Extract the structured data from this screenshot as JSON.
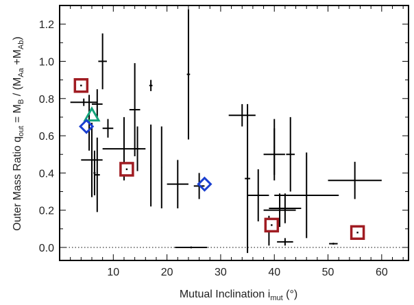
{
  "chart_data": {
    "type": "scatter",
    "xlim": [
      0,
      65
    ],
    "ylim": [
      -0.07,
      1.3
    ],
    "x_ticks": [
      "10",
      "20",
      "30",
      "40",
      "50",
      "60"
    ],
    "y_ticks": [
      "0.0",
      "0.2",
      "0.4",
      "0.6",
      "0.8",
      "1.0",
      "1.2"
    ],
    "xlabel": {
      "main": "Mutual Inclination i",
      "sub": "mut",
      "unit": " (°)"
    },
    "ylabel": {
      "part1": "Outer Mass Ratio q",
      "sub1": "out",
      "part2": " = M",
      "sub2": "B",
      "part3": " / (M",
      "sub3": "Aa",
      "part4": " +M",
      "sub4": "Ab",
      "part5": ")"
    },
    "reference_line": {
      "y": 0,
      "style": "dotted"
    },
    "grid": false,
    "colors": {
      "square": "#a01c22",
      "triangle": "#13a37a",
      "diamond": "#1a3fd0",
      "errorbar": "#000000"
    },
    "series": [
      {
        "marker": "errorbar",
        "points": [
          {
            "x": 4.5,
            "y": 0.78,
            "xerr": 2.5,
            "yerr": 0.02
          },
          {
            "x": 5.5,
            "y": 0.67,
            "xerr": 0.2,
            "yerr": 0.15
          },
          {
            "x": 6,
            "y": 0.47,
            "xerr": 2,
            "yerr": 0.2
          },
          {
            "x": 6.5,
            "y": 0.4,
            "xerr": 0.2,
            "yerr": 0.12
          },
          {
            "x": 7,
            "y": 0.39,
            "xerr": 0.5,
            "yerr": 0.2
          },
          {
            "x": 7,
            "y": 0.77,
            "xerr": 1,
            "yerr": 0.08
          },
          {
            "x": 8,
            "y": 1.0,
            "xerr": 0.8,
            "yerr": 0.15
          },
          {
            "x": 9,
            "y": 0.64,
            "xerr": 1,
            "yerr": 0.05
          },
          {
            "x": 12,
            "y": 0.53,
            "xerr": 4,
            "yerr": 0.17
          },
          {
            "x": 14,
            "y": 0.74,
            "xerr": 1,
            "yerr": 0.25
          },
          {
            "x": 14.5,
            "y": 0.53,
            "xerr": 0.5,
            "yerr": 0.12
          },
          {
            "x": 17,
            "y": 0.87,
            "xerr": 0.3,
            "yerr": 0.03
          },
          {
            "x": 17,
            "y": 0.44,
            "xerr": 0.1,
            "yerr": 0.22
          },
          {
            "x": 19,
            "y": 0.43,
            "xerr": 0.1,
            "yerr": 0.22
          },
          {
            "x": 22,
            "y": 0.34,
            "xerr": 2,
            "yerr": 0.13
          },
          {
            "x": 24,
            "y": 0.93,
            "xerr": 0.3,
            "yerr": 0.35
          },
          {
            "x": 24.5,
            "y": 0.0,
            "xerr": 3,
            "yerr": 0.005
          },
          {
            "x": 26,
            "y": 0.33,
            "xerr": 1,
            "yerr": 0.07
          },
          {
            "x": 34,
            "y": 0.71,
            "xerr": 2.5,
            "yerr": 0.06
          },
          {
            "x": 35,
            "y": 0.37,
            "xerr": 0.5,
            "yerr": 0.4
          },
          {
            "x": 37,
            "y": 0.28,
            "xerr": 2,
            "yerr": 0.14
          },
          {
            "x": 39,
            "y": 0.09,
            "xerr": 0.3,
            "yerr": 0.08
          },
          {
            "x": 40,
            "y": 0.5,
            "xerr": 2,
            "yerr": 0.14
          },
          {
            "x": 40,
            "y": 0.54,
            "xerr": 0.1,
            "yerr": 0.15
          },
          {
            "x": 41,
            "y": 0.2,
            "xerr": 3,
            "yerr": 0.09
          },
          {
            "x": 42,
            "y": 0.21,
            "xerr": 3,
            "yerr": 0.08
          },
          {
            "x": 42,
            "y": 0.03,
            "xerr": 1.5,
            "yerr": 0.02
          },
          {
            "x": 43,
            "y": 0.5,
            "xerr": 0.8,
            "yerr": 0.2
          },
          {
            "x": 46,
            "y": 0.28,
            "xerr": 6,
            "yerr": 0.23
          },
          {
            "x": 51,
            "y": 0.02,
            "xerr": 0.8,
            "yerr": 0.005
          },
          {
            "x": 55,
            "y": 0.36,
            "xerr": 5,
            "yerr": 0.1
          }
        ]
      },
      {
        "marker": "square",
        "points": [
          {
            "x": 4,
            "y": 0.87
          },
          {
            "x": 12.5,
            "y": 0.42
          },
          {
            "x": 39.5,
            "y": 0.12
          },
          {
            "x": 55.5,
            "y": 0.08
          }
        ]
      },
      {
        "marker": "triangle",
        "points": [
          {
            "x": 6,
            "y": 0.71
          }
        ]
      },
      {
        "marker": "diamond",
        "points": [
          {
            "x": 5,
            "y": 0.65
          },
          {
            "x": 27,
            "y": 0.34
          }
        ]
      }
    ]
  }
}
